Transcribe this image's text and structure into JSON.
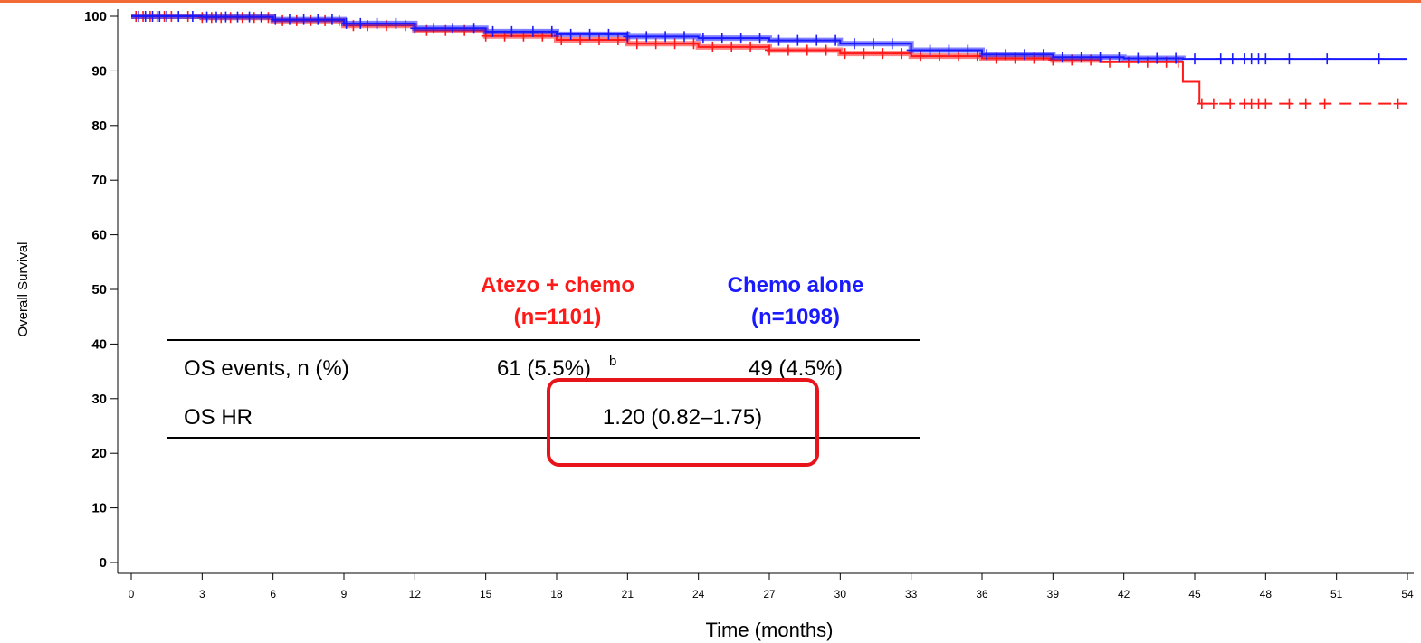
{
  "colors": {
    "accent_rule": "#f26a36",
    "atezo": "#ff1a1a",
    "chemo": "#1a1aff",
    "highlight": "#e8141c"
  },
  "chart_data": {
    "type": "line",
    "ylabel": "Overall Survival",
    "xlabel": "Time (months)",
    "xlim": [
      0,
      54
    ],
    "ylim": [
      0,
      100
    ],
    "x_ticks": [
      "0",
      "3",
      "6",
      "9",
      "12",
      "15",
      "18",
      "21",
      "24",
      "27",
      "30",
      "33",
      "36",
      "39",
      "42",
      "45",
      "48",
      "51",
      "54"
    ],
    "y_ticks": [
      "0",
      "10",
      "20",
      "30",
      "40",
      "50",
      "60",
      "70",
      "80",
      "90",
      "100"
    ],
    "grid": false,
    "series": [
      {
        "name": "Atezo + chemo",
        "color": "#ff1a1a",
        "dash": "step solid, dashed after 45 months",
        "points": [
          [
            0,
            100
          ],
          [
            3,
            99.8
          ],
          [
            6,
            99.2
          ],
          [
            9,
            98.3
          ],
          [
            12,
            97.4
          ],
          [
            15,
            96.4
          ],
          [
            18,
            95.7
          ],
          [
            21,
            95
          ],
          [
            24,
            94.4
          ],
          [
            27,
            93.8
          ],
          [
            30,
            93.2
          ],
          [
            33,
            92.7
          ],
          [
            36,
            92.3
          ],
          [
            39,
            92
          ],
          [
            41,
            91.6
          ],
          [
            44.5,
            91.5
          ],
          [
            44.5,
            88
          ],
          [
            45.2,
            88
          ],
          [
            45.2,
            84
          ],
          [
            54,
            84
          ]
        ],
        "censor_x": [
          0.2,
          0.5,
          0.8,
          1.1,
          1.4,
          1.7,
          2.4,
          3.0,
          3.4,
          3.8,
          4.2,
          4.7,
          5.2,
          5.8,
          6.4,
          7.0,
          7.6,
          8.2,
          8.8,
          9.4,
          10.0,
          10.8,
          11.6,
          12.5,
          13.3,
          14.1,
          15.0,
          15.8,
          16.6,
          17.4,
          18.2,
          19.0,
          19.8,
          20.6,
          21.4,
          22.2,
          23.0,
          23.8,
          24.6,
          25.4,
          26.2,
          27.0,
          27.8,
          28.6,
          29.4,
          30.2,
          31.0,
          31.8,
          32.6,
          33.4,
          34.2,
          35.0,
          35.8,
          36.6,
          37.4,
          38.2,
          39.0,
          39.8,
          40.6,
          41.4,
          42.2,
          43.0,
          43.8,
          44.3,
          45.3,
          45.8,
          46.5,
          47.1,
          47.4,
          47.7,
          48.0,
          49.0,
          49.7,
          50.5,
          53.6
        ]
      },
      {
        "name": "Chemo alone",
        "color": "#1a1aff",
        "dash": "solid",
        "points": [
          [
            0,
            100
          ],
          [
            3,
            99.9
          ],
          [
            6,
            99.4
          ],
          [
            9,
            98.7
          ],
          [
            12,
            97.8
          ],
          [
            15,
            97.2
          ],
          [
            18,
            96.7
          ],
          [
            21,
            96.3
          ],
          [
            24,
            96
          ],
          [
            27,
            95.6
          ],
          [
            30,
            95
          ],
          [
            33,
            93.8
          ],
          [
            36,
            93
          ],
          [
            39,
            92.5
          ],
          [
            42,
            92.3
          ],
          [
            44.5,
            92.2
          ],
          [
            54,
            92.2
          ]
        ],
        "censor_x": [
          0.3,
          0.6,
          0.9,
          1.2,
          1.5,
          2.0,
          2.6,
          3.2,
          3.6,
          4.0,
          4.5,
          5.0,
          5.5,
          6.1,
          6.7,
          7.3,
          7.9,
          8.5,
          9.1,
          9.7,
          10.4,
          11.2,
          12.0,
          12.8,
          13.6,
          14.5,
          15.3,
          16.1,
          17.0,
          17.8,
          18.6,
          19.4,
          20.2,
          21.0,
          21.8,
          22.6,
          23.4,
          24.2,
          25.0,
          25.8,
          26.6,
          27.4,
          28.2,
          29.0,
          29.8,
          30.6,
          31.4,
          32.2,
          33.0,
          33.8,
          34.6,
          35.4,
          36.2,
          37.0,
          37.8,
          38.6,
          39.4,
          40.2,
          41.0,
          41.8,
          42.6,
          43.4,
          44.2,
          45.0,
          46.1,
          46.6,
          47.1,
          47.4,
          47.7,
          48.0,
          49.0,
          50.6,
          52.8
        ]
      }
    ]
  },
  "summary_table": {
    "columns": [
      {
        "title": "Atezo + chemo",
        "subtitle": "(n=1101)"
      },
      {
        "title": "Chemo alone",
        "subtitle": "(n=1098)"
      }
    ],
    "rows": [
      {
        "label": "OS events, n (%)",
        "atezo": "61 (5.5%)",
        "atezo_sup": "b",
        "chemo": "49 (4.5%)"
      },
      {
        "label": "OS HR",
        "combined": "1.20 (0.82–1.75)"
      }
    ]
  }
}
